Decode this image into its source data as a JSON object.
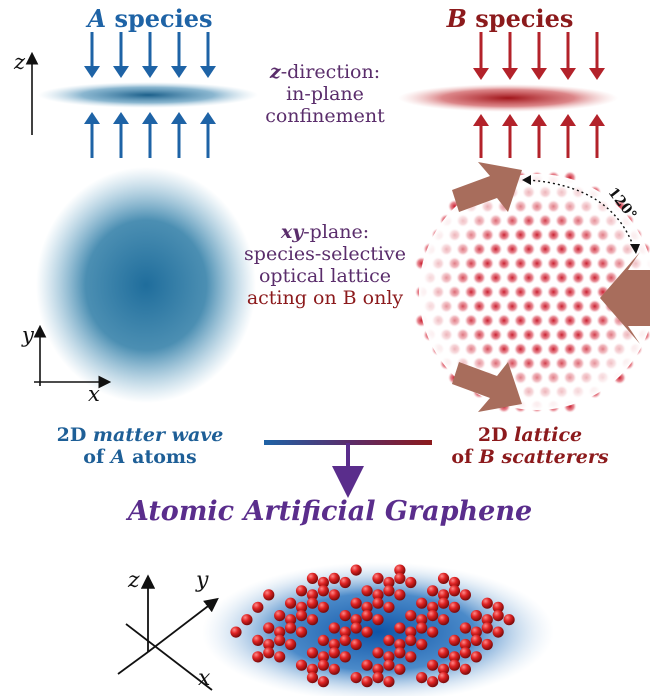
{
  "colors": {
    "a_species": "#1e63a6",
    "b_species": "#b3222a",
    "b_text": "#8c1a1c",
    "purple": "#5a2d8c",
    "arrow_brown": "#a86d5c"
  },
  "top": {
    "a_title_italic": "A",
    "a_title_rest": " species",
    "b_title_italic": "B",
    "b_title_rest": " species",
    "z_axis_label": "z",
    "zdir_italic": "z",
    "zdir_rest": "-direction:",
    "zdir_line2": "in-plane",
    "zdir_line3": "confinement"
  },
  "middle": {
    "xy_italic": "xy",
    "xy_rest": "-plane:",
    "line2": "species-selective",
    "line3": "optical lattice",
    "line4": "acting on B only",
    "angle_label": "120°",
    "y_axis_label": "y",
    "x_axis_label": "x"
  },
  "captions": {
    "a_line1_bold": "2D ",
    "a_line1_italic": "matter wave",
    "a_line2_pre": "of ",
    "a_line2_italic": "A",
    "a_line2_post": " atoms",
    "b_line1_bold": "2D ",
    "b_line1_italic": "lattice",
    "b_line2_pre": "of ",
    "b_line2_italic": "B scatterers"
  },
  "bottom": {
    "title": "Atomic Artificial Graphene",
    "z_label": "z",
    "y_label": "y",
    "x_label": "x"
  }
}
